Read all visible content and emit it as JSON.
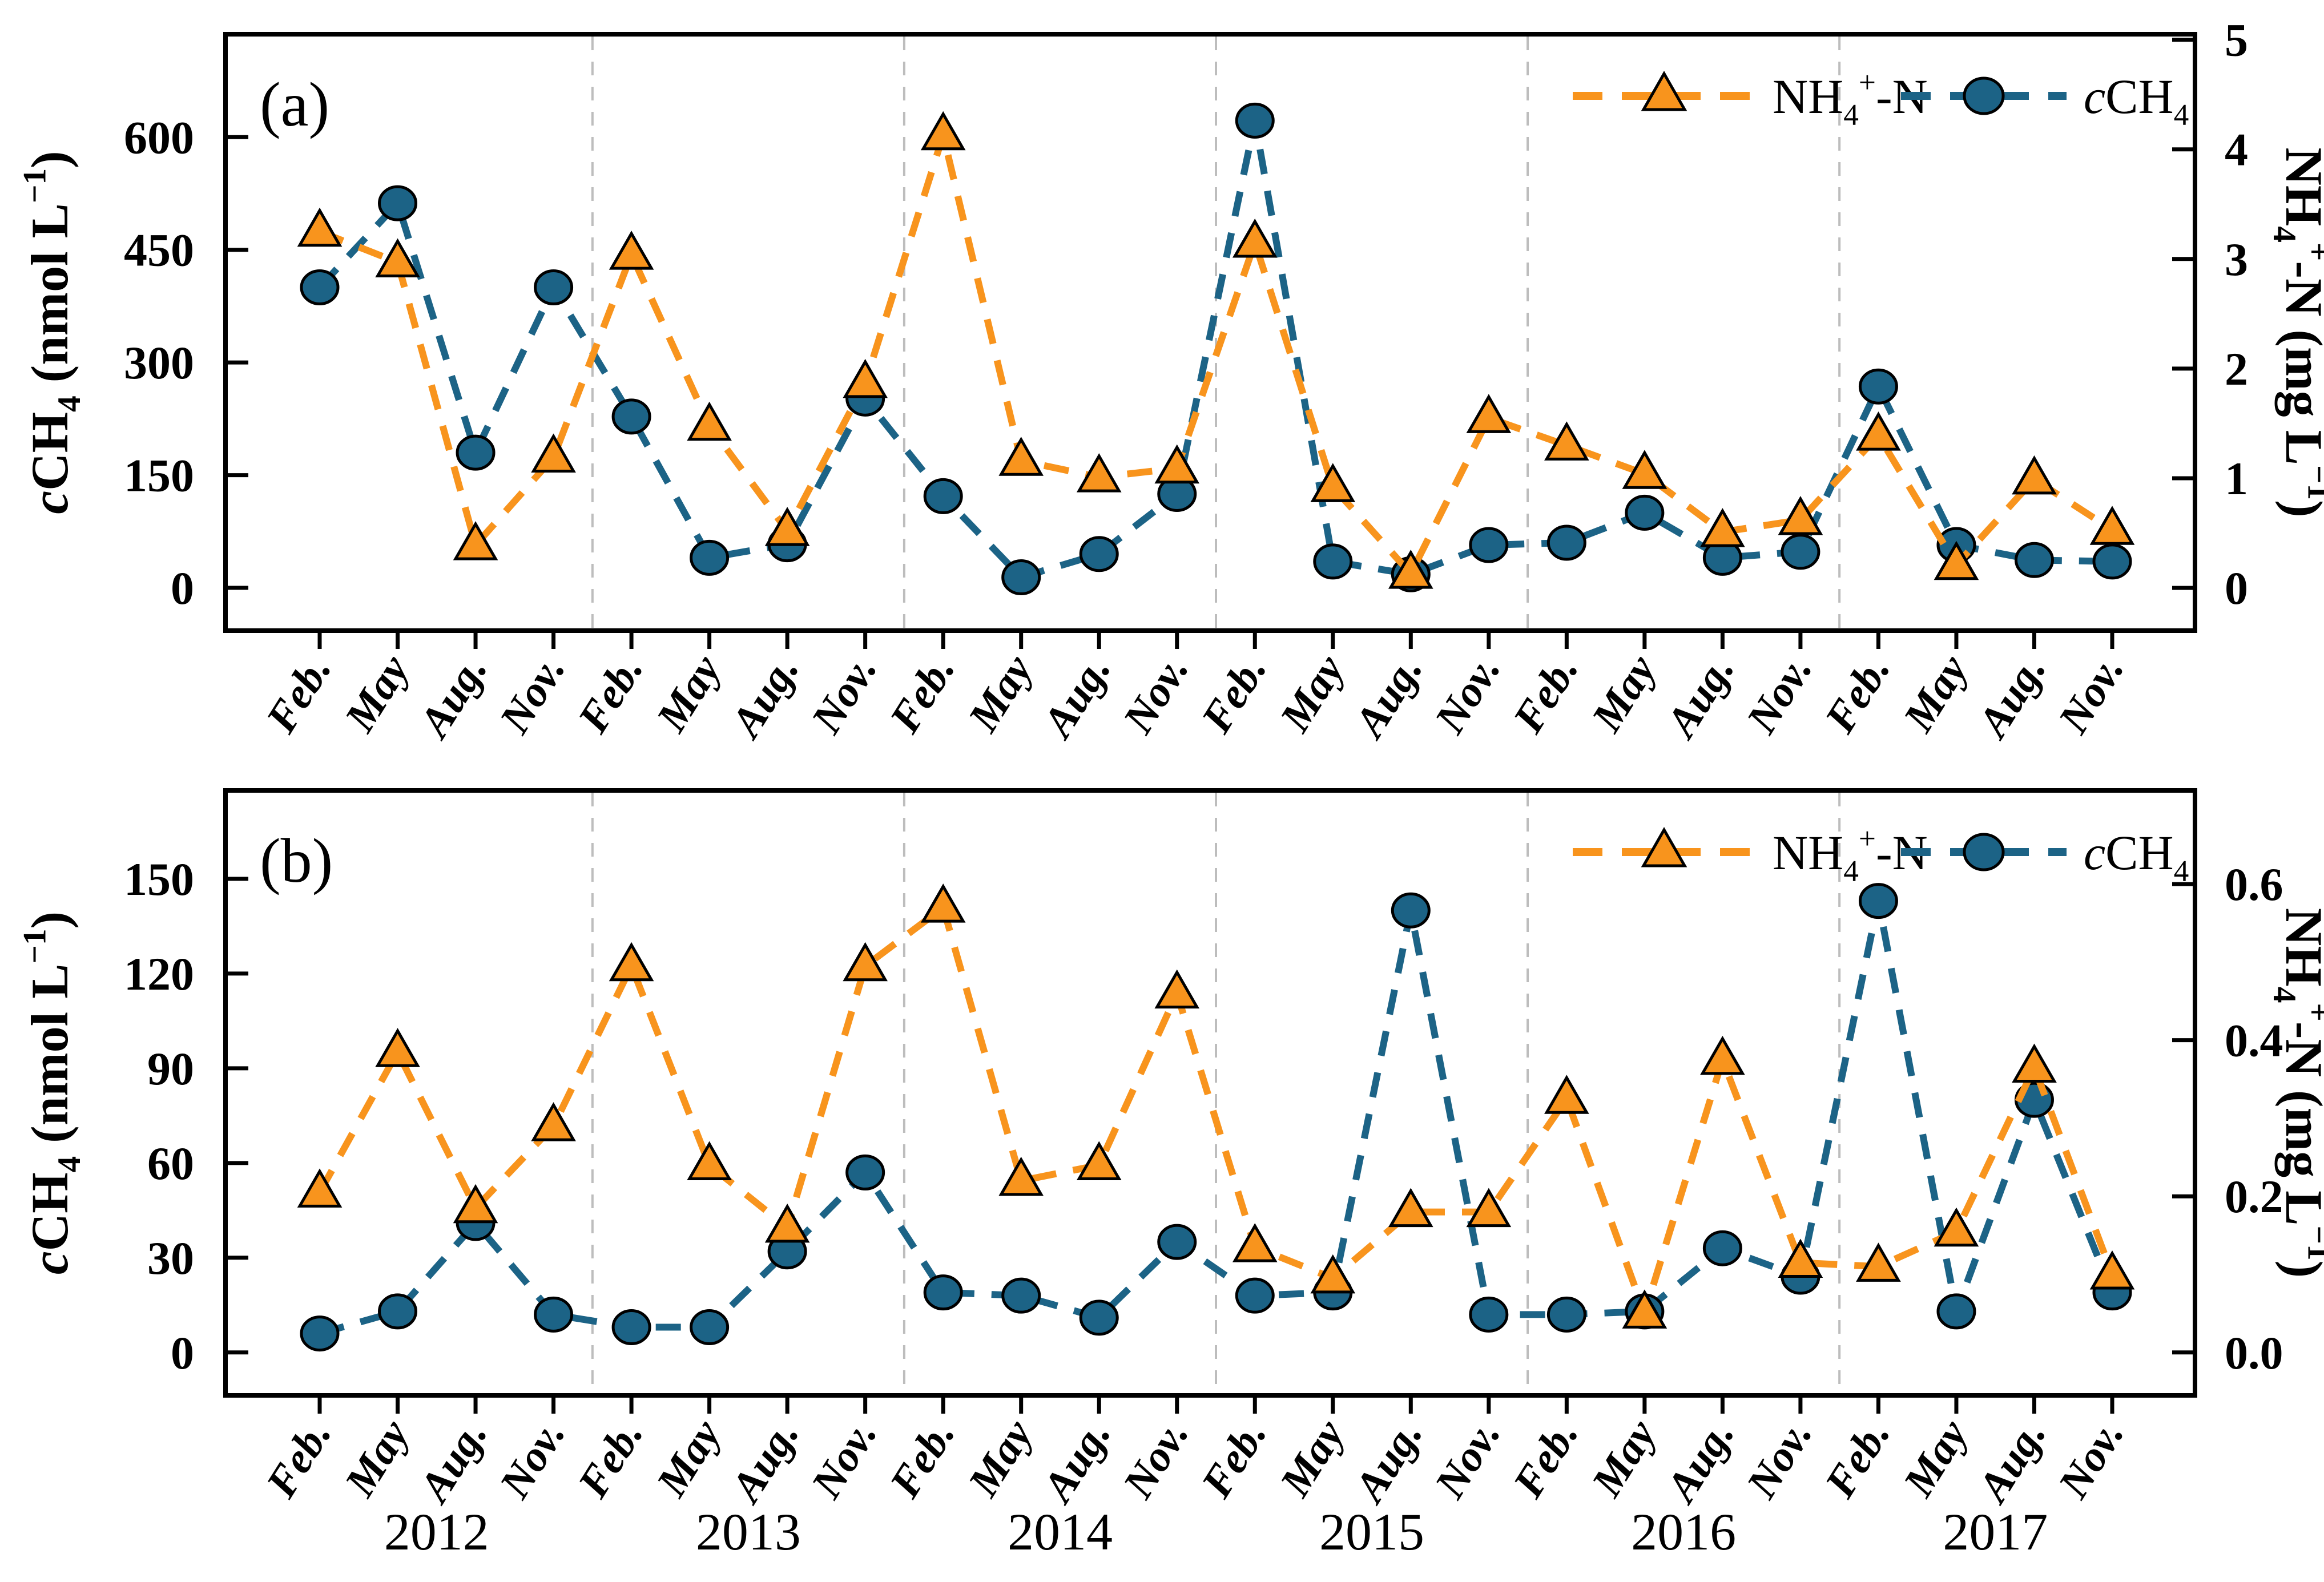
{
  "figure": {
    "background": "#ffffff",
    "panels": [
      "(a)",
      "(b)"
    ]
  },
  "colors": {
    "nh4_orange": "#F8941D",
    "ch4_teal": "#1C6386",
    "separator_gray": "#BDBDBD",
    "axis_black": "#000000"
  },
  "legend": {
    "nh4_label_segments": [
      {
        "t": "NH"
      },
      {
        "t": "4",
        "s": "sub"
      },
      {
        "t": "+",
        "s": "sup"
      },
      {
        "t": "-N"
      }
    ],
    "ch4_label_segments": [
      {
        "t": "c",
        "i": true
      },
      {
        "t": "CH"
      },
      {
        "t": "4",
        "s": "sub"
      }
    ]
  },
  "chart_data": [
    {
      "type": "line",
      "panel_label": "(a)",
      "categories": [
        "Feb.",
        "May",
        "Aug.",
        "Nov.",
        "Feb.",
        "May",
        "Aug.",
        "Nov.",
        "Feb.",
        "May",
        "Aug.",
        "Nov.",
        "Feb.",
        "May",
        "Aug.",
        "Nov.",
        "Feb.",
        "May",
        "Aug.",
        "Nov.",
        "Feb.",
        "May",
        "Aug.",
        "Nov."
      ],
      "years": [
        "2012",
        "2013",
        "2014",
        "2015",
        "2016",
        "2017"
      ],
      "show_years": false,
      "grid": "year-separators-dashed",
      "legend_position": "top-right-inside",
      "left_axis": {
        "title_segments": [
          {
            "t": "c",
            "i": true
          },
          {
            "t": "CH"
          },
          {
            "t": "4",
            "s": "sub"
          },
          {
            "t": " (nmol L"
          },
          {
            "t": "−1",
            "s": "sup"
          },
          {
            "t": ")"
          }
        ],
        "ticks": [
          0,
          150,
          300,
          450,
          600
        ],
        "tick_labels": [
          "0",
          "150",
          "300",
          "450",
          "600"
        ],
        "lim": [
          -57,
          737
        ]
      },
      "right_axis": {
        "title_segments": [
          {
            "t": "NH"
          },
          {
            "t": "4",
            "s": "sub"
          },
          {
            "t": "+",
            "s": "sup"
          },
          {
            "t": "-N (mg L"
          },
          {
            "t": "−1",
            "s": "sup"
          },
          {
            "t": ")"
          }
        ],
        "ticks": [
          0,
          1,
          2,
          3,
          4,
          5
        ],
        "tick_labels": [
          "0",
          "1",
          "2",
          "3",
          "4",
          "5"
        ],
        "lim": [
          -0.39,
          5.05
        ]
      },
      "series": [
        {
          "name": "cCH4",
          "axis": "left",
          "marker": "circle",
          "color": "#1C6386",
          "values": [
            400,
            512,
            180,
            400,
            228,
            40,
            58,
            252,
            122,
            14,
            45,
            125,
            622,
            35,
            18,
            57,
            60,
            100,
            40,
            48,
            268,
            57,
            37,
            35
          ]
        },
        {
          "name": "NH4-N",
          "axis": "right",
          "marker": "triangle",
          "color": "#F8941D",
          "values": [
            3.25,
            2.97,
            0.39,
            1.19,
            3.04,
            1.48,
            0.52,
            1.87,
            4.13,
            1.16,
            1.01,
            1.09,
            3.15,
            0.92,
            0.13,
            1.55,
            1.3,
            1.04,
            0.51,
            0.62,
            1.39,
            0.21,
            0.99,
            0.53
          ]
        }
      ]
    },
    {
      "type": "line",
      "panel_label": "(b)",
      "categories": [
        "Feb.",
        "May",
        "Aug.",
        "Nov.",
        "Feb.",
        "May",
        "Aug.",
        "Nov.",
        "Feb.",
        "May",
        "Aug.",
        "Nov.",
        "Feb.",
        "May",
        "Aug.",
        "Nov.",
        "Feb.",
        "May",
        "Aug.",
        "Nov.",
        "Feb.",
        "May",
        "Aug.",
        "Nov."
      ],
      "years": [
        "2012",
        "2013",
        "2014",
        "2015",
        "2016",
        "2017"
      ],
      "show_years": true,
      "grid": "year-separators-dashed",
      "legend_position": "top-right-inside",
      "left_axis": {
        "title_segments": [
          {
            "t": "c",
            "i": true
          },
          {
            "t": "CH"
          },
          {
            "t": "4",
            "s": "sub"
          },
          {
            "t": " (nmol L"
          },
          {
            "t": "−1",
            "s": "sup"
          },
          {
            "t": ")"
          }
        ],
        "ticks": [
          0,
          30,
          60,
          90,
          120,
          150
        ],
        "tick_labels": [
          "0",
          "30",
          "60",
          "90",
          "120",
          "150"
        ],
        "lim": [
          -13.6,
          178
        ]
      },
      "right_axis": {
        "title_segments": [
          {
            "t": "NH"
          },
          {
            "t": "4",
            "s": "sub"
          },
          {
            "t": "+",
            "s": "sup"
          },
          {
            "t": "-N (mg L"
          },
          {
            "t": "−1",
            "s": "sup"
          },
          {
            "t": ")"
          }
        ],
        "ticks": [
          0.0,
          0.2,
          0.4,
          0.6
        ],
        "tick_labels": [
          "0.0",
          "0.2",
          "0.4",
          "0.6"
        ],
        "lim": [
          -0.055,
          0.72
        ]
      },
      "series": [
        {
          "name": "cCH4",
          "axis": "left",
          "marker": "circle",
          "color": "#1C6386",
          "values": [
            6,
            13,
            41,
            12,
            8,
            8,
            32,
            57,
            19,
            18,
            11,
            35,
            18,
            19,
            140,
            12,
            12,
            13,
            33,
            24,
            143,
            13,
            80,
            19
          ]
        },
        {
          "name": "NH4-N",
          "axis": "right",
          "marker": "triangle",
          "color": "#F8941D",
          "values": [
            0.205,
            0.385,
            0.185,
            0.29,
            0.495,
            0.24,
            0.16,
            0.495,
            0.57,
            0.22,
            0.24,
            0.46,
            0.135,
            0.095,
            0.18,
            0.18,
            0.325,
            0.05,
            0.375,
            0.115,
            0.11,
            0.155,
            0.365,
            0.1
          ]
        }
      ]
    }
  ]
}
